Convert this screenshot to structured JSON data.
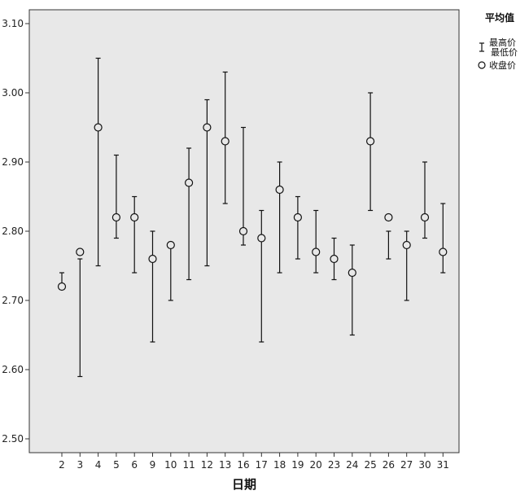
{
  "chart_data": {
    "type": "scatter",
    "title": "",
    "xlabel": "日期",
    "ylabel": "",
    "ylim": [
      2.48,
      3.12
    ],
    "yticks": [
      "2.50",
      "2.60",
      "2.70",
      "2.80",
      "2.90",
      "3.00",
      "3.10"
    ],
    "ytick_values": [
      2.5,
      2.6,
      2.7,
      2.8,
      2.9,
      3.0,
      3.1
    ],
    "grid": false,
    "legend": {
      "title": "平均值",
      "position": "top-right",
      "range_label_high": "最高价",
      "range_label_low": "最低价",
      "point_label": "收盘价"
    },
    "categories": [
      "2",
      "3",
      "4",
      "5",
      "6",
      "9",
      "10",
      "11",
      "12",
      "13",
      "16",
      "17",
      "18",
      "19",
      "20",
      "23",
      "24",
      "25",
      "26",
      "27",
      "30",
      "31"
    ],
    "high": [
      2.74,
      2.76,
      3.05,
      2.91,
      2.85,
      2.8,
      2.78,
      2.92,
      2.99,
      3.03,
      2.95,
      2.83,
      2.9,
      2.85,
      2.83,
      2.79,
      2.78,
      3.0,
      2.8,
      2.8,
      2.9,
      2.84
    ],
    "low": [
      2.72,
      2.59,
      2.75,
      2.79,
      2.74,
      2.64,
      2.7,
      2.73,
      2.75,
      2.84,
      2.78,
      2.64,
      2.74,
      2.76,
      2.74,
      2.73,
      2.65,
      2.83,
      2.76,
      2.7,
      2.79,
      2.74
    ],
    "close": [
      2.72,
      2.77,
      2.95,
      2.82,
      2.82,
      2.76,
      2.78,
      2.87,
      2.95,
      2.93,
      2.8,
      2.79,
      2.86,
      2.82,
      2.77,
      2.76,
      2.74,
      2.93,
      2.82,
      2.78,
      2.82,
      2.77
    ]
  }
}
